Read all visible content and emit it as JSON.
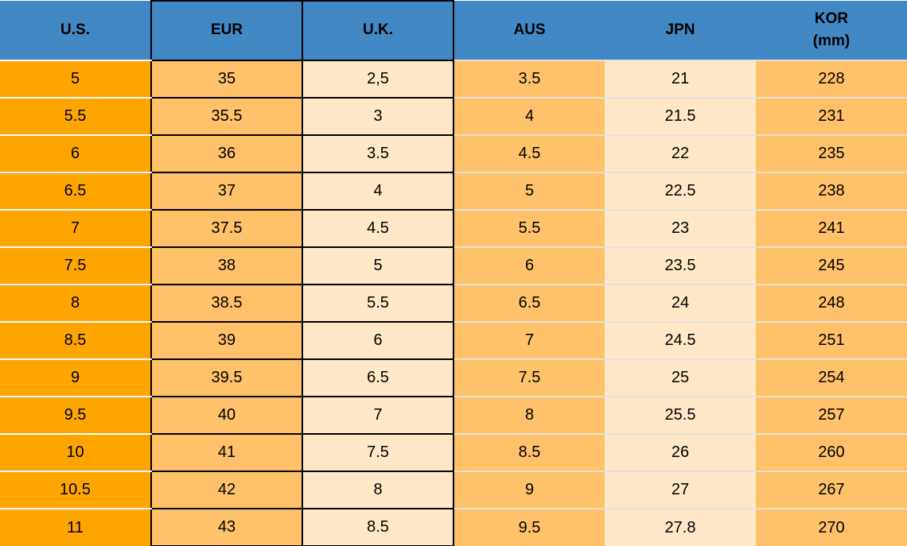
{
  "table": {
    "title": "shoe-size-conversion",
    "columns": [
      {
        "key": "us",
        "label": "U.S.",
        "label2": ""
      },
      {
        "key": "eur",
        "label": "EUR",
        "label2": ""
      },
      {
        "key": "uk",
        "label": "U.K.",
        "label2": ""
      },
      {
        "key": "aus",
        "label": "AUS",
        "label2": ""
      },
      {
        "key": "jpn",
        "label": "JPN",
        "label2": ""
      },
      {
        "key": "kor",
        "label": "KOR",
        "label2": "(mm)"
      }
    ],
    "rows": [
      [
        "5",
        "35",
        "2,5",
        "3.5",
        "21",
        "228"
      ],
      [
        "5.5",
        "35.5",
        "3",
        "4",
        "21.5",
        "231"
      ],
      [
        "6",
        "36",
        "3.5",
        "4.5",
        "22",
        "235"
      ],
      [
        "6.5",
        "37",
        "4",
        "5",
        "22.5",
        "238"
      ],
      [
        "7",
        "37.5",
        "4.5",
        "5.5",
        "23",
        "241"
      ],
      [
        "7.5",
        "38",
        "5",
        "6",
        "23.5",
        "245"
      ],
      [
        "8",
        "38.5",
        "5.5",
        "6.5",
        "24",
        "248"
      ],
      [
        "8.5",
        "39",
        "6",
        "7",
        "24.5",
        "251"
      ],
      [
        "9",
        "39.5",
        "6.5",
        "7.5",
        "25",
        "254"
      ],
      [
        "9.5",
        "40",
        "7",
        "8",
        "25.5",
        "257"
      ],
      [
        "10",
        "41",
        "7.5",
        "8.5",
        "26",
        "260"
      ],
      [
        "10.5",
        "42",
        "8",
        "9",
        "27",
        "267"
      ],
      [
        "11",
        "43",
        "8.5",
        "9.5",
        "27.8",
        "270"
      ]
    ],
    "colors": {
      "header-blue": "#4288C5",
      "us-orange": "#FFA502",
      "mid-orange": "#FFC26B",
      "cream": "#FFE8C8",
      "sep-white": "#FFFFFF",
      "sep-light": "#E5E1DA",
      "border-black": "#000000",
      "text-black": "#000000"
    }
  }
}
